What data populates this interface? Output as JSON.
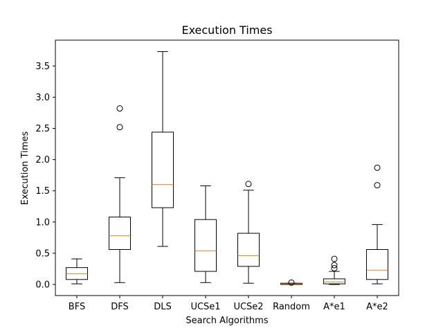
{
  "chart_data": {
    "type": "boxplot",
    "title": "Execution Times",
    "xlabel": "Search Algorithms",
    "ylabel": "Execution Times",
    "ylim": [
      -0.17,
      3.9
    ],
    "yticks": [
      0.0,
      0.5,
      1.0,
      1.5,
      2.0,
      2.5,
      3.0,
      3.5
    ],
    "ytick_labels": [
      "0.0",
      "0.5",
      "1.0",
      "1.5",
      "2.0",
      "2.5",
      "3.0",
      "3.5"
    ],
    "grid": false,
    "colors": {
      "box": "#000000",
      "median": "#ff7f0e",
      "flier": "#000000"
    },
    "categories": [
      "BFS",
      "DFS",
      "DLS",
      "UCSe1",
      "UCSe2",
      "Random",
      "A*e1",
      "A*e2"
    ],
    "boxes": [
      {
        "label": "BFS",
        "whislo": 0.01,
        "q1": 0.08,
        "med": 0.17,
        "q3": 0.27,
        "whishi": 0.41,
        "fliers": []
      },
      {
        "label": "DFS",
        "whislo": 0.03,
        "q1": 0.56,
        "med": 0.78,
        "q3": 1.08,
        "whishi": 1.71,
        "fliers": [
          2.52,
          2.82
        ]
      },
      {
        "label": "DLS",
        "whislo": 0.61,
        "q1": 1.23,
        "med": 1.6,
        "q3": 2.44,
        "whishi": 3.73,
        "fliers": []
      },
      {
        "label": "UCSe1",
        "whislo": 0.03,
        "q1": 0.21,
        "med": 0.54,
        "q3": 1.04,
        "whishi": 1.58,
        "fliers": []
      },
      {
        "label": "UCSe2",
        "whislo": 0.02,
        "q1": 0.29,
        "med": 0.46,
        "q3": 0.82,
        "whishi": 1.51,
        "fliers": [
          1.61
        ]
      },
      {
        "label": "Random",
        "whislo": 0.0,
        "q1": 0.0,
        "med": 0.01,
        "q3": 0.02,
        "whishi": 0.02,
        "fliers": [
          0.03
        ]
      },
      {
        "label": "A*e1",
        "whislo": 0.0,
        "q1": 0.01,
        "med": 0.04,
        "q3": 0.09,
        "whishi": 0.21,
        "fliers": [
          0.26,
          0.31,
          0.41
        ]
      },
      {
        "label": "A*e2",
        "whislo": 0.01,
        "q1": 0.08,
        "med": 0.23,
        "q3": 0.56,
        "whishi": 0.96,
        "fliers": [
          1.59,
          1.87
        ]
      }
    ]
  }
}
